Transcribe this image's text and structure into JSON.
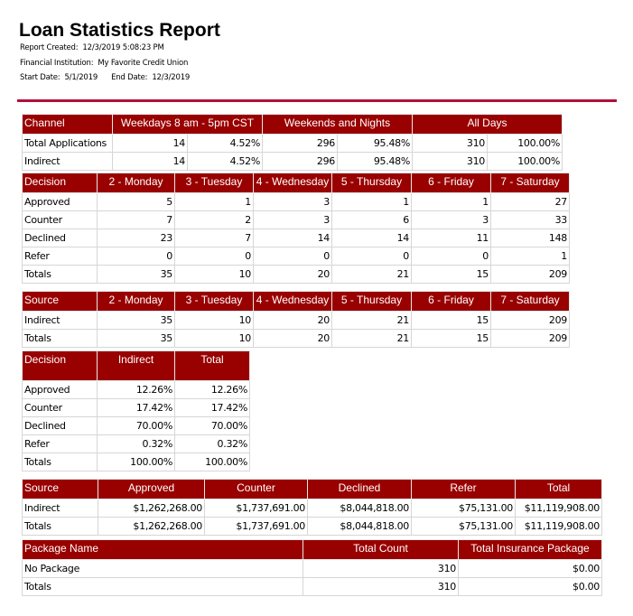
{
  "report": {
    "title": "Loan Statistics Report",
    "created_label": "Report Created:",
    "created": "12/3/2019 5:08:23 PM",
    "institution_label": "Financial Institution:",
    "institution": "My Favorite Credit Union",
    "start_label": "Start Date:",
    "start": "5/1/2019",
    "end_label": "End Date:",
    "end": "12/3/2019"
  },
  "colors": {
    "header_bg": "#990000",
    "rule": "#b30f3c"
  },
  "tables": [
    {
      "headers": [
        "Channel",
        "Weekdays 8 am - 5pm CST",
        "Weekends and Nights",
        "All Days"
      ],
      "spans": [
        1,
        2,
        2,
        2
      ],
      "rows": [
        [
          "Total Applications",
          "14",
          "4.52%",
          "296",
          "95.48%",
          "310",
          "100.00%"
        ],
        [
          "Indirect",
          "14",
          "4.52%",
          "296",
          "95.48%",
          "310",
          "100.00%"
        ]
      ]
    },
    {
      "headers": [
        "Decision",
        "2 - Monday",
        "3 - Tuesday",
        "4 - Wednesday",
        "5 - Thursday",
        "6 - Friday",
        "7 - Saturday"
      ],
      "rows": [
        [
          "Approved",
          "5",
          "1",
          "3",
          "1",
          "1",
          "27"
        ],
        [
          "Counter",
          "7",
          "2",
          "3",
          "6",
          "3",
          "33"
        ],
        [
          "Declined",
          "23",
          "7",
          "14",
          "14",
          "11",
          "148"
        ],
        [
          "Refer",
          "0",
          "0",
          "0",
          "0",
          "0",
          "1"
        ],
        [
          "Totals",
          "35",
          "10",
          "20",
          "21",
          "15",
          "209"
        ]
      ]
    },
    {
      "headers": [
        "Source",
        "2 - Monday",
        "3 - Tuesday",
        "4 - Wednesday",
        "5 - Thursday",
        "6 - Friday",
        "7 - Saturday"
      ],
      "rows": [
        [
          "Indirect",
          "35",
          "10",
          "20",
          "21",
          "15",
          "209"
        ],
        [
          "Totals",
          "35",
          "10",
          "20",
          "21",
          "15",
          "209"
        ]
      ]
    },
    {
      "headers": [
        "Decision",
        "Indirect",
        "Total"
      ],
      "rows": [
        [
          "Approved",
          "12.26%",
          "12.26%"
        ],
        [
          "Counter",
          "17.42%",
          "17.42%"
        ],
        [
          "Declined",
          "70.00%",
          "70.00%"
        ],
        [
          "Refer",
          "0.32%",
          "0.32%"
        ],
        [
          "Totals",
          "100.00%",
          "100.00%"
        ]
      ]
    },
    {
      "headers": [
        "Source",
        "Approved",
        "Counter",
        "Declined",
        "Refer",
        "Total"
      ],
      "rows": [
        [
          "Indirect",
          "$1,262,268.00",
          "$1,737,691.00",
          "$8,044,818.00",
          "$75,131.00",
          "$11,119,908.00"
        ],
        [
          "Totals",
          "$1,262,268.00",
          "$1,737,691.00",
          "$8,044,818.00",
          "$75,131.00",
          "$11,119,908.00"
        ]
      ]
    },
    {
      "headers": [
        "Package Name",
        "Total Count",
        "Total Insurance Package"
      ],
      "rows": [
        [
          "No Package",
          "310",
          "$0.00"
        ],
        [
          "Totals",
          "310",
          "$0.00"
        ]
      ]
    }
  ]
}
